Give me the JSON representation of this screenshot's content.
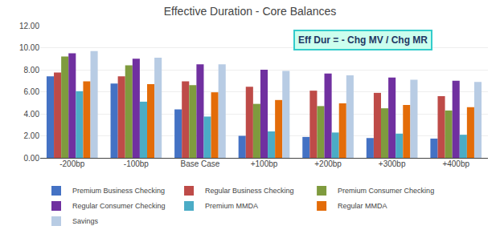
{
  "chart_data": {
    "type": "bar",
    "title": "Effective Duration - Core Balances",
    "annotation": "Eff Dur = - Chg MV / Chg MR",
    "categories": [
      "-200bp",
      "-100bp",
      "Base Case",
      "+100bp",
      "+200bp",
      "+300bp",
      "+400bp"
    ],
    "series": [
      {
        "name": "Premium Business Checking",
        "color": "#4472C4",
        "values": [
          7.4,
          6.75,
          4.4,
          2.0,
          1.9,
          1.8,
          1.75
        ]
      },
      {
        "name": "Regular Business Checking",
        "color": "#BE4B48",
        "values": [
          7.75,
          7.4,
          6.95,
          6.45,
          6.1,
          5.9,
          5.6
        ]
      },
      {
        "name": "Premium Consumer Checking",
        "color": "#7F9B3E",
        "values": [
          9.2,
          8.4,
          6.6,
          4.9,
          4.7,
          4.5,
          4.3
        ]
      },
      {
        "name": "Regular Consumer Checking",
        "color": "#7030A0",
        "values": [
          9.5,
          9.0,
          8.5,
          8.0,
          7.65,
          7.3,
          7.0
        ]
      },
      {
        "name": "Premium MMDA",
        "color": "#4BACC6",
        "values": [
          6.05,
          5.1,
          3.75,
          2.4,
          2.3,
          2.2,
          2.1
        ]
      },
      {
        "name": "Regular MMDA",
        "color": "#E36C09",
        "values": [
          6.95,
          6.7,
          5.95,
          5.25,
          4.95,
          4.8,
          4.6
        ]
      },
      {
        "name": "Savings",
        "color": "#B8CCE4",
        "values": [
          9.7,
          9.1,
          8.5,
          7.9,
          7.5,
          7.1,
          6.9
        ]
      }
    ],
    "ylim": [
      0,
      12.0
    ],
    "yticks": [
      {
        "value": 0.0,
        "label": "0.00"
      },
      {
        "value": 2.0,
        "label": "2.00"
      },
      {
        "value": 4.0,
        "label": "4.00"
      },
      {
        "value": 6.0,
        "label": "6.00"
      },
      {
        "value": 8.0,
        "label": "8.00"
      },
      {
        "value": 10.0,
        "label": "10.00"
      },
      {
        "value": 12.0,
        "label": "12.00"
      }
    ],
    "grid": true,
    "legend": "bottom"
  }
}
